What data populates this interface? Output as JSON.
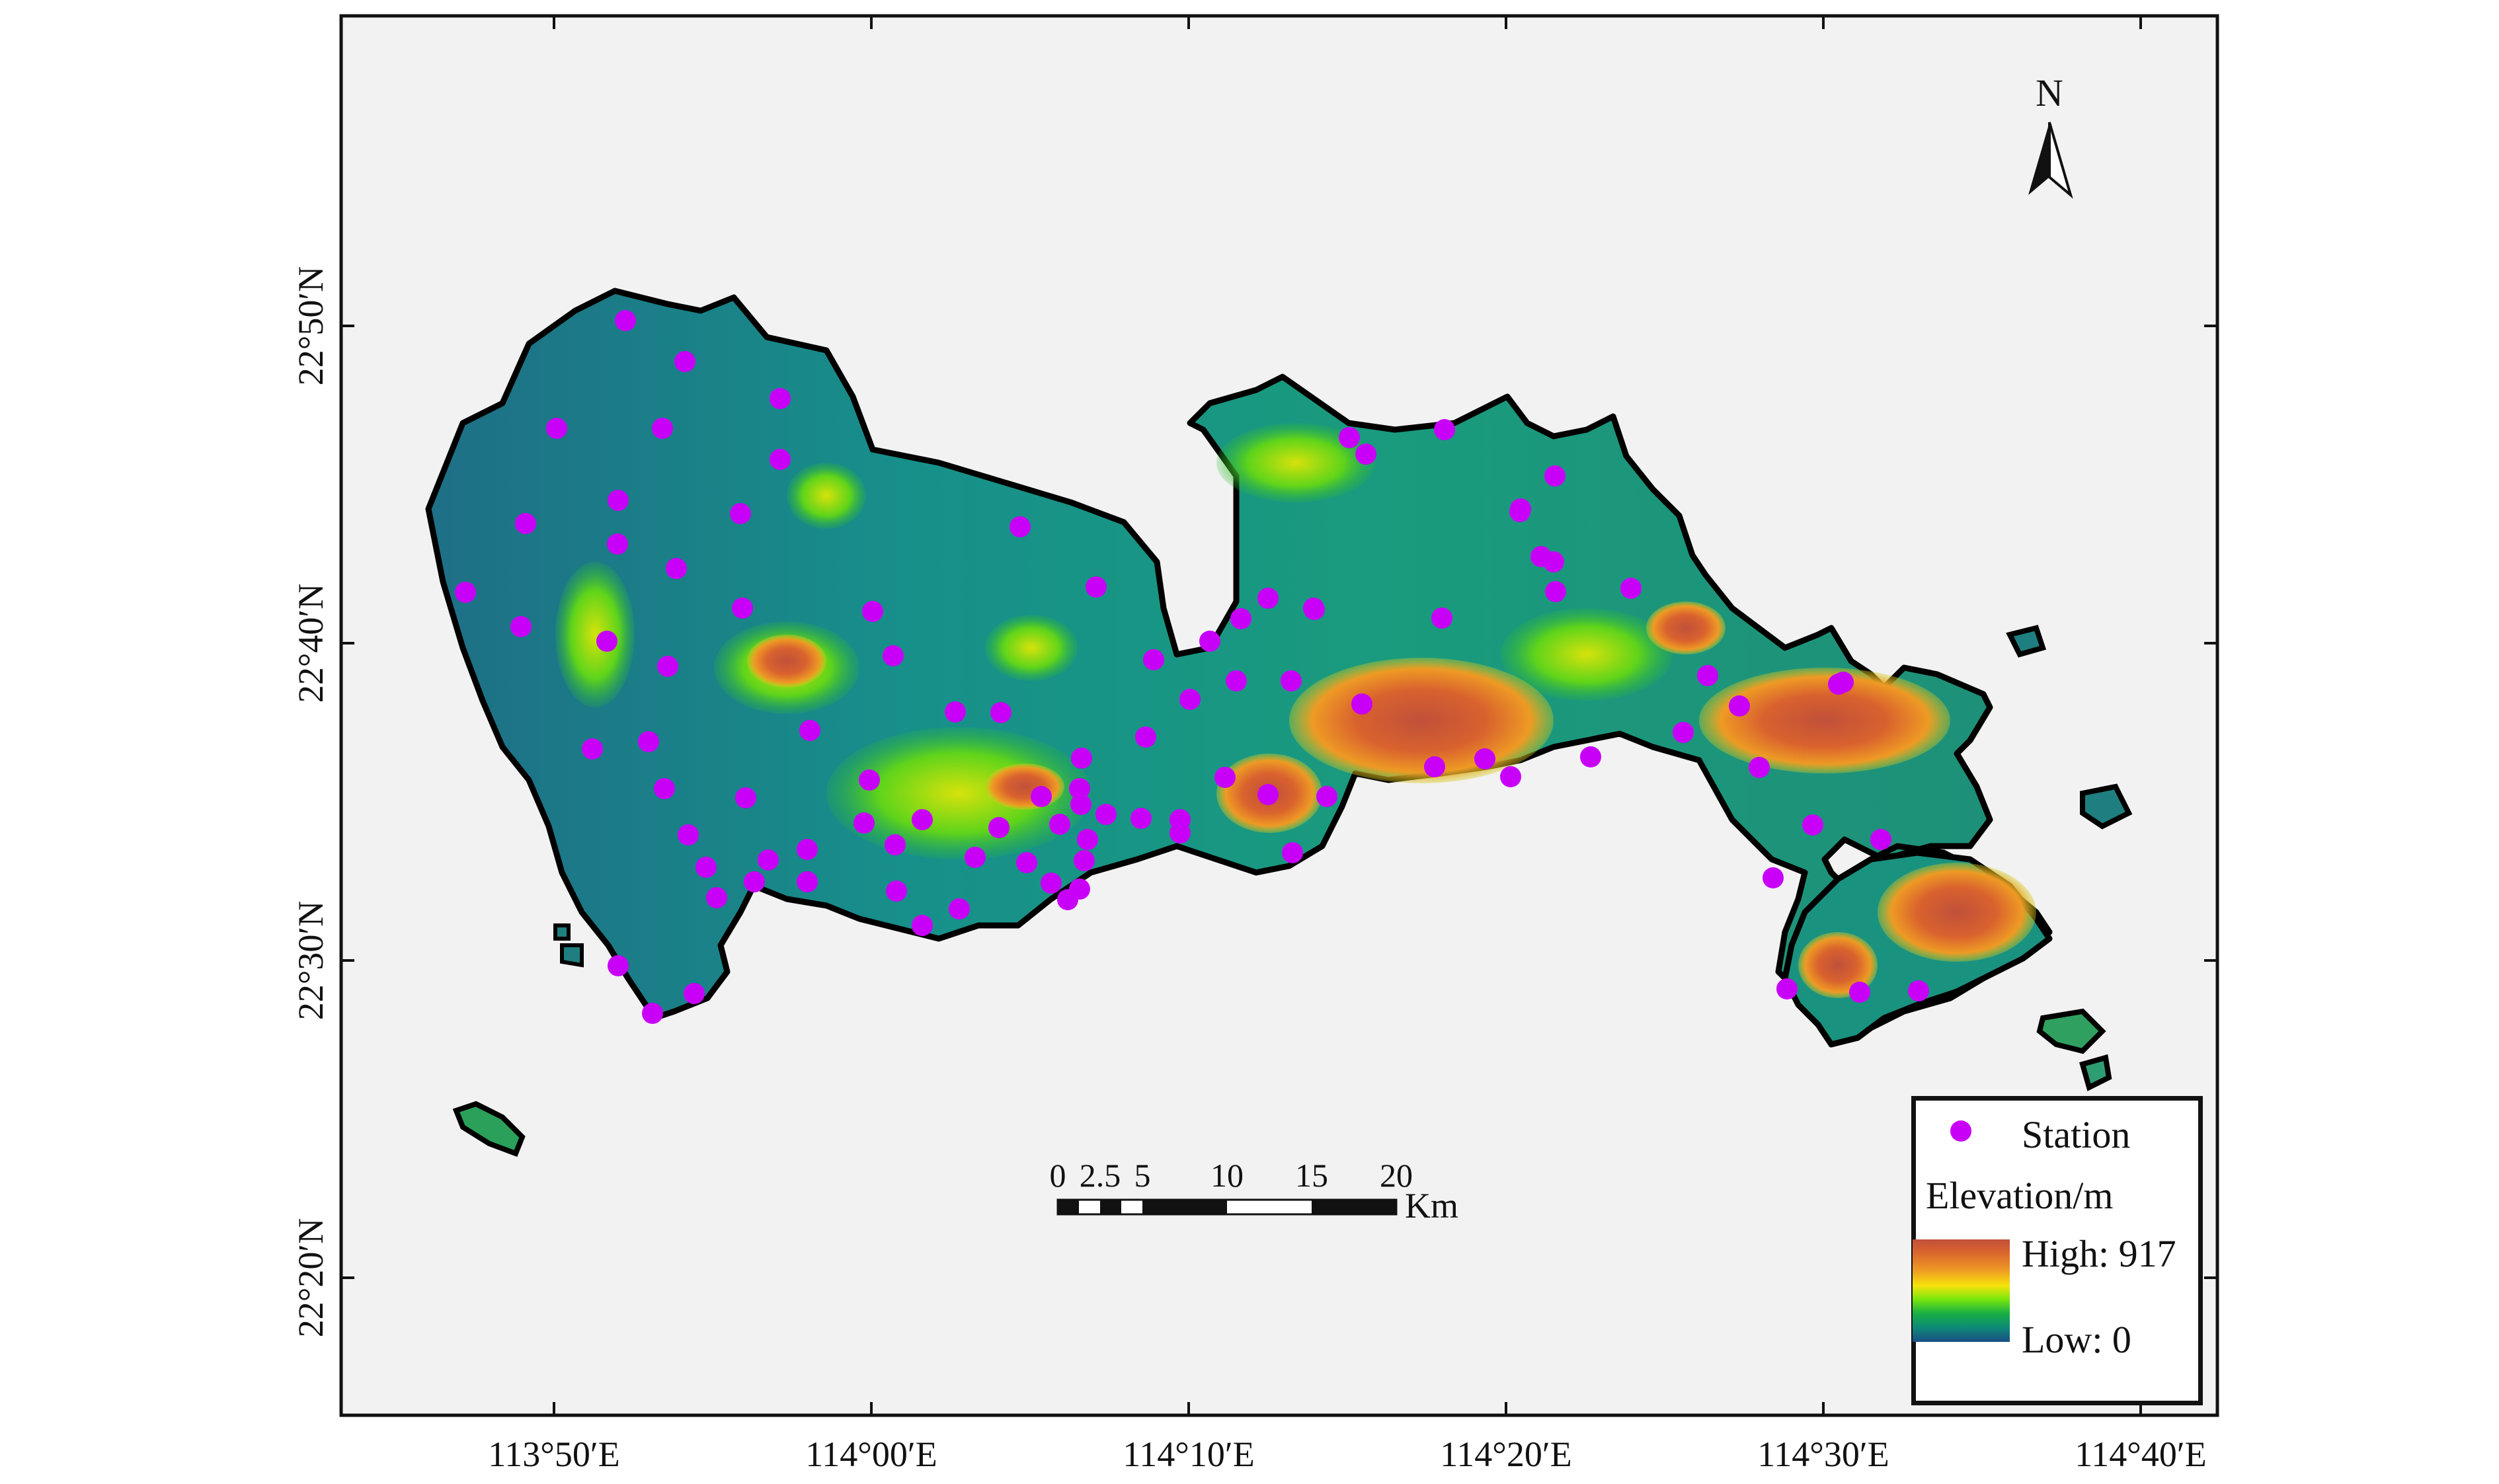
{
  "map": {
    "north_label": "N",
    "scale_bar": {
      "tick_labels": [
        "0",
        "2.5",
        "5",
        "10",
        "15",
        "20"
      ],
      "unit": "Km"
    },
    "x_ticks": [
      "113°50′E",
      "114°00′E",
      "114°10′E",
      "114°20′E",
      "114°30′E",
      "114°40′E"
    ],
    "y_ticks": [
      "22°50′N",
      "22°40′N",
      "22°30′N",
      "22°20′N"
    ],
    "legend": {
      "station_label": "Station",
      "elevation_title": "Elevation/m",
      "high_label": "High: 917",
      "low_label": "Low: 0"
    },
    "colors": {
      "station": "#c800f8",
      "background": "#f2f2f2",
      "low": "#1a4d84",
      "high": "#c0503a"
    }
  }
}
